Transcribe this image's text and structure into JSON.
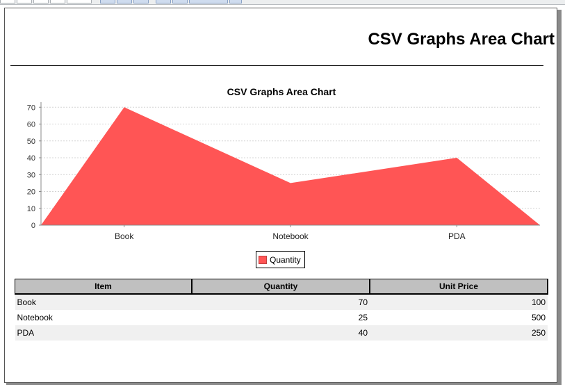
{
  "report": {
    "title": "CSV Graphs Area Chart"
  },
  "chart_data": {
    "type": "area",
    "title": "CSV Graphs Area Chart",
    "categories": [
      "Book",
      "Notebook",
      "PDA"
    ],
    "series": [
      {
        "name": "Quantity",
        "values": [
          70,
          25,
          40
        ],
        "color": "#ff5555"
      }
    ],
    "y_ticks": [
      0,
      10,
      20,
      30,
      40,
      50,
      60,
      70
    ],
    "ylim": [
      0,
      73
    ],
    "grid": true,
    "legend_position": "bottom"
  },
  "table": {
    "columns": [
      "Item",
      "Quantity",
      "Unit Price"
    ],
    "rows": [
      [
        "Book",
        "70",
        "100"
      ],
      [
        "Notebook",
        "25",
        "500"
      ],
      [
        "PDA",
        "40",
        "250"
      ]
    ]
  }
}
